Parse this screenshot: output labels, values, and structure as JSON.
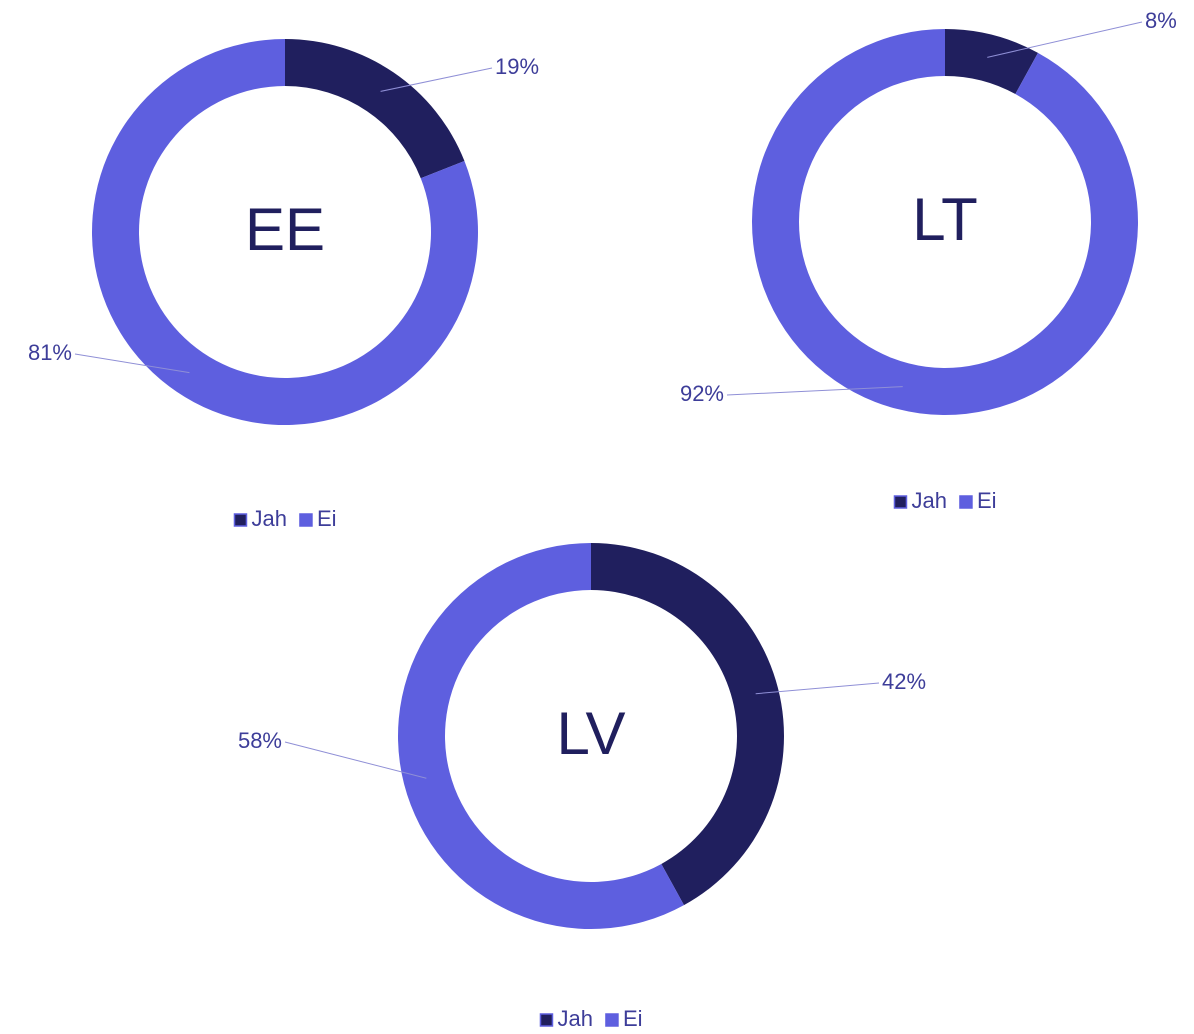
{
  "chart_data": [
    {
      "type": "pie",
      "title": "EE",
      "categories": [
        "Jah",
        "Ei"
      ],
      "values": [
        19,
        81
      ],
      "value_labels": [
        "19%",
        "81%"
      ],
      "colors": [
        "#201f5e",
        "#5e5fdf"
      ],
      "legend": "bottom"
    },
    {
      "type": "pie",
      "title": "LT",
      "categories": [
        "Jah",
        "Ei"
      ],
      "values": [
        8,
        92
      ],
      "value_labels": [
        "8%",
        "92%"
      ],
      "colors": [
        "#201f5e",
        "#5e5fdf"
      ],
      "legend": "bottom"
    },
    {
      "type": "pie",
      "title": "LV",
      "categories": [
        "Jah",
        "Ei"
      ],
      "values": [
        42,
        58
      ],
      "value_labels": [
        "42%",
        "58%"
      ],
      "colors": [
        "#201f5e",
        "#5e5fdf"
      ],
      "legend": "bottom"
    }
  ]
}
